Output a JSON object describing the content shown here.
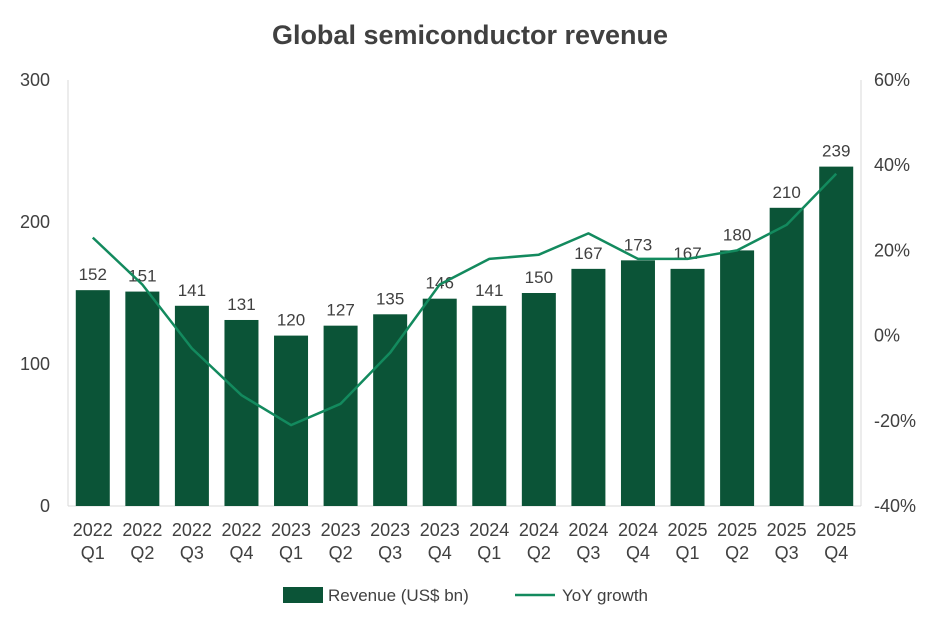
{
  "chart_data": {
    "type": "bar",
    "title": "Global semiconductor revenue",
    "categories": [
      [
        "2022",
        "Q1"
      ],
      [
        "2022",
        "Q2"
      ],
      [
        "2022",
        "Q3"
      ],
      [
        "2022",
        "Q4"
      ],
      [
        "2023",
        "Q1"
      ],
      [
        "2023",
        "Q2"
      ],
      [
        "2023",
        "Q3"
      ],
      [
        "2023",
        "Q4"
      ],
      [
        "2024",
        "Q1"
      ],
      [
        "2024",
        "Q2"
      ],
      [
        "2024",
        "Q3"
      ],
      [
        "2024",
        "Q4"
      ],
      [
        "2025",
        "Q1"
      ],
      [
        "2025",
        "Q2"
      ],
      [
        "2025",
        "Q3"
      ],
      [
        "2025",
        "Q4"
      ]
    ],
    "series": [
      {
        "name": "Revenue (US$ bn)",
        "type": "bar",
        "axis": "left",
        "color": "#0b5437",
        "values": [
          152,
          151,
          141,
          131,
          120,
          127,
          135,
          146,
          141,
          150,
          167,
          173,
          167,
          180,
          210,
          239
        ],
        "labels": [
          "152",
          "151",
          "141",
          "131",
          "120",
          "127",
          "135",
          "146",
          "141",
          "150",
          "167",
          "173",
          "167",
          "180",
          "210",
          "239"
        ]
      },
      {
        "name": "YoY growth",
        "type": "line",
        "axis": "right",
        "color": "#138a5e",
        "values": [
          0.23,
          0.12,
          -0.03,
          -0.14,
          -0.21,
          -0.16,
          -0.04,
          0.12,
          0.18,
          0.19,
          0.24,
          0.18,
          0.18,
          0.2,
          0.26,
          0.38
        ]
      }
    ],
    "left_axis": {
      "ylim": [
        0,
        300
      ],
      "ticks": [
        0,
        100,
        200,
        300
      ],
      "tick_labels": [
        "0",
        "100",
        "200",
        "300"
      ]
    },
    "right_axis": {
      "ylim": [
        -0.4,
        0.6
      ],
      "ticks": [
        -0.4,
        -0.2,
        0,
        0.2,
        0.4,
        0.6
      ],
      "tick_labels": [
        "-40%",
        "-20%",
        "0%",
        "20%",
        "40%",
        "60%"
      ]
    },
    "grid": false,
    "legend_position": "bottom-center",
    "colors": {
      "axis": "#d9d9d9",
      "text": "#404040"
    }
  }
}
